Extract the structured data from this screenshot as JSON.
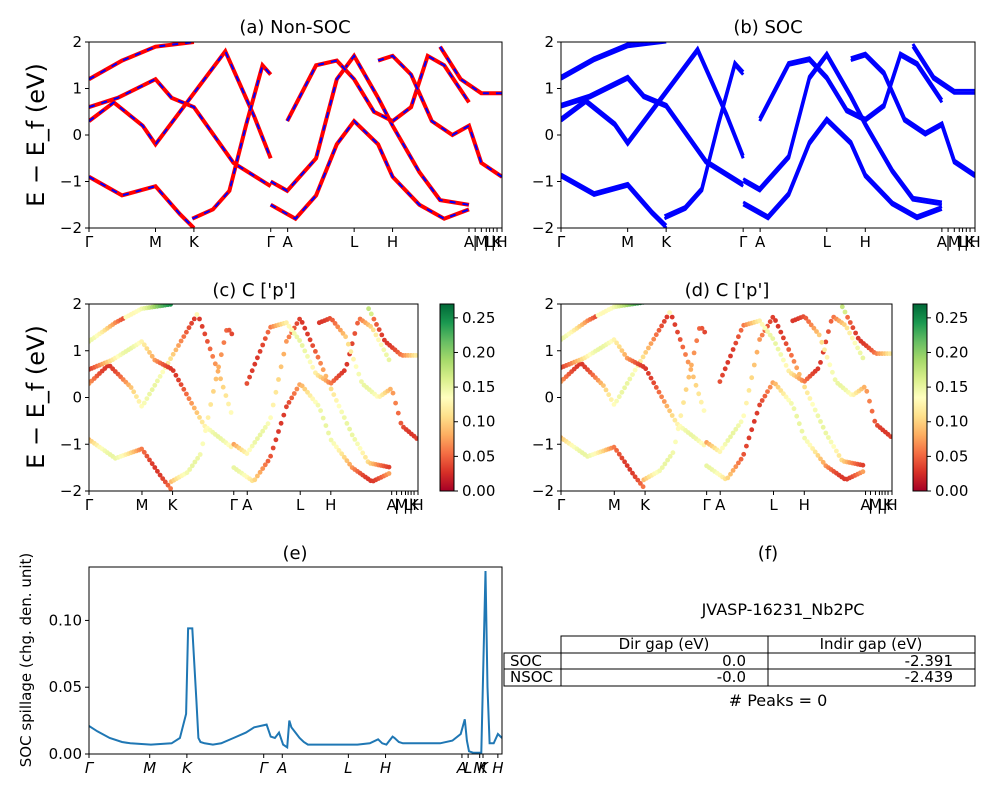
{
  "chart_data": [
    {
      "type": "line",
      "title": "(a) Non-SOC",
      "ylabel": "E − E_f (eV)",
      "ylim": [
        -2,
        2
      ],
      "yticks": [
        "2",
        "1",
        "0",
        "−1",
        "−2"
      ],
      "xlim": [
        0,
        1
      ],
      "kpoints": [
        {
          "label": "Γ",
          "x": 0.0
        },
        {
          "label": "M",
          "x": 0.161
        },
        {
          "label": "K",
          "x": 0.254
        },
        {
          "label": "Γ",
          "x": 0.44
        },
        {
          "label": "A",
          "x": 0.481
        },
        {
          "label": "L",
          "x": 0.642
        },
        {
          "label": "H",
          "x": 0.735
        },
        {
          "label": "A",
          "x": 0.92
        },
        {
          "label": "|",
          "x": 0.935
        },
        {
          "label": "M",
          "x": 0.95
        },
        {
          "label": "|",
          "x": 0.962
        },
        {
          "label": "L",
          "x": 0.97
        },
        {
          "label": "|",
          "x": 0.979
        },
        {
          "label": "K",
          "x": 0.988
        },
        {
          "label": "H",
          "x": 1.0
        }
      ],
      "series": [
        {
          "color": "#ff0000",
          "style": "solid",
          "bands": [
            [
              [
                0,
                -0.9
              ],
              [
                0.08,
                -1.3
              ],
              [
                0.161,
                -1.1
              ],
              [
                0.22,
                -1.7
              ],
              [
                0.254,
                -2.0
              ]
            ],
            [
              [
                0,
                1.2
              ],
              [
                0.08,
                1.6
              ],
              [
                0.161,
                1.9
              ],
              [
                0.254,
                2.0
              ]
            ],
            [
              [
                0,
                0.3
              ],
              [
                0.06,
                0.7
              ],
              [
                0.13,
                0.2
              ],
              [
                0.161,
                -0.2
              ],
              [
                0.254,
                0.9
              ],
              [
                0.33,
                1.8
              ],
              [
                0.4,
                0.4
              ],
              [
                0.44,
                -0.5
              ]
            ],
            [
              [
                0,
                0.6
              ],
              [
                0.07,
                0.8
              ],
              [
                0.161,
                1.2
              ],
              [
                0.2,
                0.8
              ],
              [
                0.254,
                0.6
              ],
              [
                0.35,
                -0.6
              ],
              [
                0.44,
                -1.1
              ]
            ],
            [
              [
                0.25,
                -1.8
              ],
              [
                0.3,
                -1.6
              ],
              [
                0.34,
                -1.2
              ],
              [
                0.38,
                0.2
              ],
              [
                0.42,
                1.5
              ],
              [
                0.44,
                1.3
              ]
            ],
            [
              [
                0.44,
                -1.0
              ],
              [
                0.48,
                -1.2
              ],
              [
                0.55,
                -0.5
              ],
              [
                0.6,
                1.2
              ],
              [
                0.642,
                1.7
              ],
              [
                0.7,
                0.8
              ],
              [
                0.735,
                0.2
              ],
              [
                0.8,
                -0.8
              ],
              [
                0.85,
                -1.4
              ],
              [
                0.92,
                -1.5
              ]
            ],
            [
              [
                0.44,
                -1.5
              ],
              [
                0.5,
                -1.8
              ],
              [
                0.55,
                -1.3
              ],
              [
                0.6,
                -0.2
              ],
              [
                0.642,
                0.3
              ],
              [
                0.7,
                -0.2
              ],
              [
                0.735,
                -0.9
              ],
              [
                0.8,
                -1.5
              ],
              [
                0.86,
                -1.8
              ],
              [
                0.92,
                -1.6
              ]
            ],
            [
              [
                0.48,
                0.3
              ],
              [
                0.55,
                1.5
              ],
              [
                0.6,
                1.6
              ],
              [
                0.642,
                1.2
              ],
              [
                0.69,
                0.5
              ],
              [
                0.735,
                0.3
              ],
              [
                0.78,
                0.6
              ],
              [
                0.82,
                1.7
              ],
              [
                0.86,
                1.5
              ],
              [
                0.92,
                0.7
              ]
            ],
            [
              [
                0.7,
                1.6
              ],
              [
                0.735,
                1.7
              ],
              [
                0.78,
                1.3
              ],
              [
                0.83,
                0.3
              ],
              [
                0.88,
                0.0
              ],
              [
                0.92,
                0.2
              ],
              [
                0.95,
                -0.6
              ],
              [
                1.0,
                -0.9
              ]
            ],
            [
              [
                0.85,
                1.9
              ],
              [
                0.9,
                1.2
              ],
              [
                0.95,
                0.9
              ],
              [
                1.0,
                0.9
              ]
            ]
          ]
        },
        {
          "color": "#0000ff",
          "style": "dashed",
          "bands": "same-as-red"
        }
      ]
    },
    {
      "type": "line",
      "title": "(b) SOC",
      "ylim": [
        -2,
        2
      ],
      "yticks": [
        "2",
        "1",
        "0",
        "−1",
        "−2"
      ],
      "kpoint_labels": [
        "Γ",
        "M",
        "K",
        "Γ",
        "A",
        "L",
        "H",
        "A",
        "|",
        "M",
        "|",
        "L",
        "|",
        "K",
        "H"
      ],
      "series": [
        {
          "color": "#0000ff",
          "style": "solid",
          "bands": "same-as-(a)"
        }
      ]
    },
    {
      "type": "scatter",
      "title": "(c)  C ['p']",
      "ylabel": "E − E_f (eV)",
      "ylim": [
        -2,
        2
      ],
      "yticks": [
        "2",
        "1",
        "0",
        "−1",
        "−2"
      ],
      "kpoint_labels": [
        "Γ",
        "M",
        "K",
        "Γ",
        "A",
        "L",
        "H",
        "A",
        "|",
        "M",
        "|",
        "L",
        "|",
        "K",
        "H"
      ],
      "colorbar": {
        "cmap": "RdYlGn",
        "min": 0.0,
        "max": 0.27,
        "ticks": [
          "0.00",
          "0.05",
          "0.10",
          "0.15",
          "0.20",
          "0.25"
        ]
      },
      "points": "bands-of-(a)-colored-by-weight"
    },
    {
      "type": "scatter",
      "title": "(d) C ['p']",
      "ylim": [
        -2,
        2
      ],
      "yticks": [
        "2",
        "1",
        "0",
        "−1",
        "−2"
      ],
      "kpoint_labels": [
        "Γ",
        "M",
        "K",
        "Γ",
        "A",
        "L",
        "H",
        "A",
        "|",
        "M",
        "|",
        "L",
        "|",
        "K",
        "H"
      ],
      "colorbar": {
        "cmap": "RdYlGn",
        "min": 0.0,
        "max": 0.27,
        "ticks": [
          "0.00",
          "0.05",
          "0.10",
          "0.15",
          "0.20",
          "0.25"
        ]
      },
      "points": "bands-of-(a)-colored-by-weight"
    },
    {
      "type": "line",
      "title": "(e)",
      "ylabel": "SOC spillage (chg. den. unit)",
      "ylim": [
        0,
        0.14
      ],
      "yticks": [
        "0.00",
        "0.05",
        "0.10"
      ],
      "kpoint_labels": [
        "Γ",
        "M",
        "K",
        "Γ",
        "A",
        "L",
        "H",
        "A",
        "L",
        "M",
        "K",
        "H"
      ],
      "series": [
        {
          "color": "#1f77b4",
          "x": [
            0,
            0.02,
            0.05,
            0.08,
            0.1,
            0.15,
            0.2,
            0.22,
            0.235,
            0.24,
            0.245,
            0.25,
            0.26,
            0.265,
            0.27,
            0.28,
            0.3,
            0.32,
            0.35,
            0.38,
            0.4,
            0.43,
            0.44,
            0.45,
            0.46,
            0.47,
            0.48,
            0.485,
            0.49,
            0.5,
            0.51,
            0.52,
            0.53,
            0.55,
            0.6,
            0.65,
            0.68,
            0.7,
            0.71,
            0.72,
            0.725,
            0.735,
            0.74,
            0.75,
            0.76,
            0.78,
            0.8,
            0.85,
            0.88,
            0.9,
            0.91,
            0.915,
            0.92,
            0.93,
            0.95,
            0.96,
            0.965,
            0.97,
            0.975,
            0.98,
            0.99,
            1.0
          ],
          "values": [
            0.021,
            0.017,
            0.012,
            0.009,
            0.008,
            0.007,
            0.008,
            0.012,
            0.03,
            0.094,
            0.094,
            0.094,
            0.04,
            0.012,
            0.009,
            0.008,
            0.007,
            0.008,
            0.012,
            0.016,
            0.02,
            0.022,
            0.013,
            0.012,
            0.016,
            0.007,
            0.005,
            0.025,
            0.02,
            0.016,
            0.012,
            0.009,
            0.007,
            0.007,
            0.007,
            0.007,
            0.008,
            0.011,
            0.008,
            0.007,
            0.009,
            0.013,
            0.012,
            0.009,
            0.008,
            0.008,
            0.008,
            0.008,
            0.01,
            0.015,
            0.026,
            0.01,
            0.002,
            0.001,
            0.001,
            0.137,
            0.05,
            0.008,
            0.008,
            0.008,
            0.015,
            0.012
          ]
        }
      ]
    }
  ],
  "table": {
    "title": "(f)",
    "name": "JVASP-16231_Nb2PC",
    "headers": [
      "",
      "Dir gap (eV)",
      "Indir gap (eV)"
    ],
    "rows": [
      [
        "SOC",
        "0.0",
        "-2.391"
      ],
      [
        "NSOC",
        "-0.0",
        "-2.439"
      ]
    ],
    "peaks": "# Peaks = 0"
  },
  "colors": {
    "red": "#ff0000",
    "blue": "#0000ff",
    "spillage": "#1f77b4"
  }
}
